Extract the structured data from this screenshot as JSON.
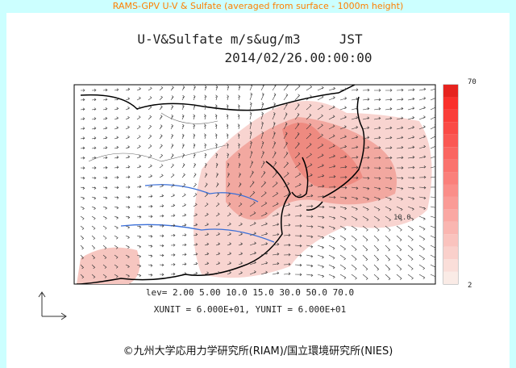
{
  "header": {
    "title": "RAMS-GPV U-V & Sulfate (averaged from surface - 1000m height)"
  },
  "plot": {
    "title": "U-V&Sulfate m/s&ug/m3     JST",
    "time": "2014/02/26.00:00:00",
    "colorbar": {
      "max_label": "70",
      "min_label": "2"
    },
    "contour_label": "10.0",
    "levels_line": "lev= 2.00 5.00 10.0 15.0 30.0 50.0 70.0",
    "units_line": "XUNIT = 6.000E+01, YUNIT = 6.000E+01"
  },
  "footer": {
    "credit": "©九州大学応用力学研究所(RIAM)/国立環境研究所(NIES)"
  }
}
